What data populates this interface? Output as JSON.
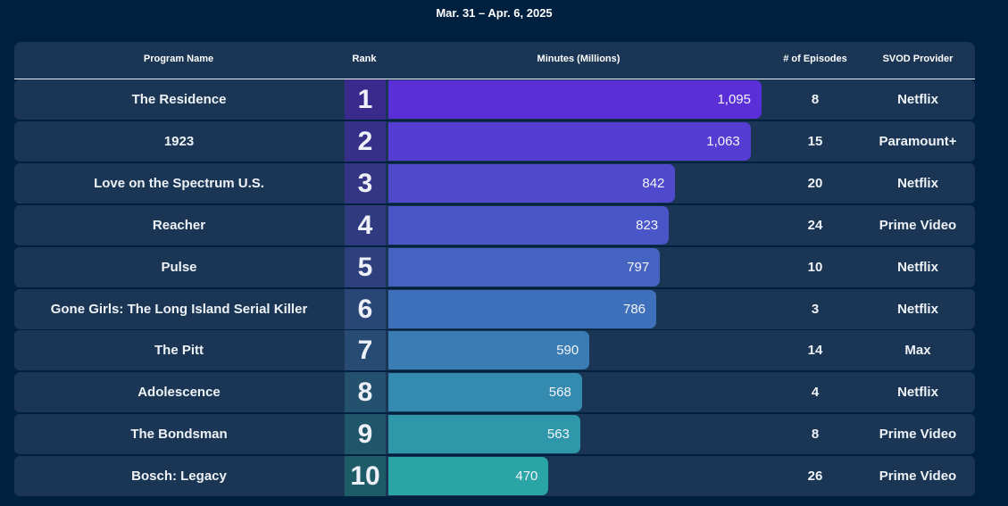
{
  "subtitle": "Mar. 31 – Apr. 6, 2025",
  "headers": {
    "program": "Program Name",
    "rank": "Rank",
    "minutes": "Minutes (Millions)",
    "episodes": "# of Episodes",
    "provider": "SVOD Provider"
  },
  "colors": {
    "background": "#00203f",
    "row": "#1a3654",
    "bar_start": "#5a2fd8",
    "bar_end": "#2aa4a4",
    "rank_start": "#3a2a8c",
    "rank_end": "#1d5c66"
  },
  "chart_data": {
    "type": "bar",
    "orientation": "horizontal",
    "categories": [
      "The Residence",
      "1923",
      "Love on the Spectrum U.S.",
      "Reacher",
      "Pulse",
      "Gone Girls: The Long Island Serial Killer",
      "The Pitt",
      "Adolescence",
      "The Bondsman",
      "Bosch: Legacy"
    ],
    "series": [
      {
        "values": [
          1095,
          1063,
          842,
          823,
          797,
          786,
          590,
          568,
          563,
          470
        ]
      }
    ],
    "value_labels": [
      "1,095",
      "1,063",
      "842",
      "823",
      "797",
      "786",
      "590",
      "568",
      "563",
      "470"
    ],
    "xlim": [
      0,
      1095
    ],
    "grid": false,
    "legend": "none"
  },
  "rows": [
    {
      "rank": "1",
      "name": "The Residence",
      "minutes": "1,095",
      "episodes": "8",
      "provider": "Netflix"
    },
    {
      "rank": "2",
      "name": "1923",
      "minutes": "1,063",
      "episodes": "15",
      "provider": "Paramount+"
    },
    {
      "rank": "3",
      "name": "Love on the Spectrum U.S.",
      "minutes": "842",
      "episodes": "20",
      "provider": "Netflix"
    },
    {
      "rank": "4",
      "name": "Reacher",
      "minutes": "823",
      "episodes": "24",
      "provider": "Prime Video"
    },
    {
      "rank": "5",
      "name": "Pulse",
      "minutes": "797",
      "episodes": "10",
      "provider": "Netflix"
    },
    {
      "rank": "6",
      "name": "Gone Girls: The Long Island Serial Killer",
      "minutes": "786",
      "episodes": "3",
      "provider": "Netflix"
    },
    {
      "rank": "7",
      "name": "The Pitt",
      "minutes": "590",
      "episodes": "14",
      "provider": "Max"
    },
    {
      "rank": "8",
      "name": "Adolescence",
      "minutes": "568",
      "episodes": "4",
      "provider": "Netflix"
    },
    {
      "rank": "9",
      "name": "The Bondsman",
      "minutes": "563",
      "episodes": "8",
      "provider": "Prime Video"
    },
    {
      "rank": "10",
      "name": "Bosch: Legacy",
      "minutes": "470",
      "episodes": "26",
      "provider": "Prime Video"
    }
  ]
}
